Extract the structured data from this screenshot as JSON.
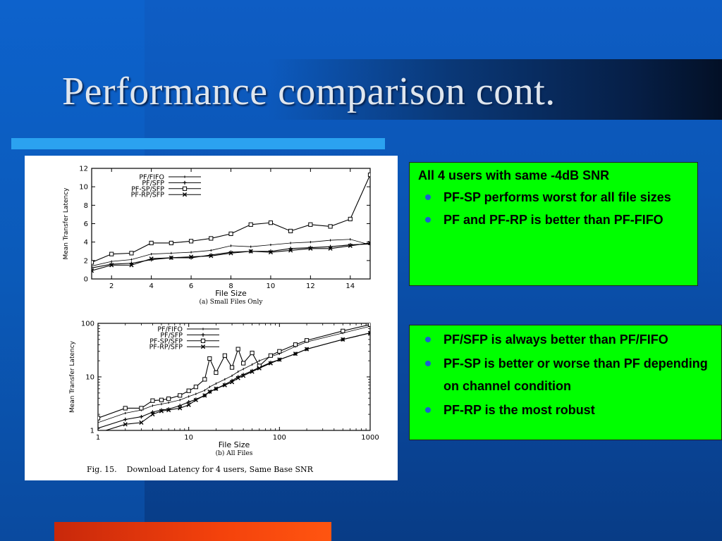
{
  "slide": {
    "title": "Performance comparison cont."
  },
  "box1": {
    "heading": "All 4 users with same -4dB SNR",
    "bullets": [
      "PF-SP performs worst for all file sizes",
      "PF and PF-RP is better than PF-FIFO"
    ]
  },
  "box2": {
    "bullets": [
      "PF/SFP is always better than PF/FIFO",
      "PF-SP is better or worse than PF depending on channel condition",
      "PF-RP is the most robust"
    ]
  },
  "figure": {
    "caption": "Fig. 15.    Download Latency for 4 users, Same Base SNR"
  },
  "chart_data": [
    {
      "type": "line",
      "subtitle": "(a) Small Files Only",
      "xlabel": "File Size",
      "ylabel": "Mean Transfer Latency",
      "xlim": [
        1,
        15
      ],
      "ylim": [
        0,
        12
      ],
      "xticks": [
        2,
        4,
        6,
        8,
        10,
        12,
        14
      ],
      "yticks": [
        0,
        2,
        4,
        6,
        8,
        10,
        12
      ],
      "x": [
        1,
        2,
        3,
        4,
        5,
        6,
        7,
        8,
        9,
        10,
        11,
        12,
        13,
        14,
        15
      ],
      "legend_position": "top-left",
      "series": [
        {
          "name": "PF/FIFO",
          "values": [
            1.4,
            1.9,
            2.1,
            2.7,
            2.8,
            2.9,
            3.1,
            3.6,
            3.5,
            3.7,
            3.9,
            4.0,
            4.2,
            4.3,
            3.7
          ]
        },
        {
          "name": "PF/SFP",
          "values": [
            1.2,
            1.6,
            1.7,
            2.1,
            2.3,
            2.3,
            2.6,
            2.9,
            3.0,
            3.0,
            3.3,
            3.4,
            3.5,
            3.7,
            3.8
          ]
        },
        {
          "name": "PF-SP/SFP",
          "values": [
            1.8,
            2.7,
            2.8,
            3.9,
            3.9,
            4.1,
            4.4,
            4.9,
            5.9,
            6.1,
            5.2,
            5.9,
            5.7,
            6.5,
            11.3
          ]
        },
        {
          "name": "PF-RP/SFP",
          "values": [
            0.9,
            1.5,
            1.5,
            2.2,
            2.3,
            2.4,
            2.5,
            2.8,
            3.0,
            2.9,
            3.1,
            3.3,
            3.3,
            3.6,
            3.9
          ]
        }
      ]
    },
    {
      "type": "line",
      "subtitle": "(b) All Files",
      "xlabel": "File Size",
      "ylabel": "Mean Transfer Latency",
      "xscale": "log",
      "yscale": "log",
      "xlim": [
        1,
        1000
      ],
      "ylim": [
        1,
        100
      ],
      "xticks": [
        1,
        10,
        100,
        1000
      ],
      "yticks": [
        1,
        10,
        100
      ],
      "x": [
        1,
        2,
        3,
        4,
        5,
        6,
        8,
        10,
        12,
        15,
        17,
        20,
        25,
        30,
        35,
        40,
        50,
        60,
        80,
        100,
        150,
        200,
        500,
        1000
      ],
      "legend_position": "top-left",
      "series": [
        {
          "name": "PF/FIFO",
          "values": [
            1.4,
            2.1,
            2.4,
            2.9,
            3.1,
            3.3,
            3.7,
            4.3,
            4.8,
            5.6,
            6.5,
            7.5,
            9.0,
            10.5,
            12.5,
            14.0,
            17.0,
            20.0,
            24.0,
            27.0,
            37.0,
            45.0,
            66.0,
            88.0
          ]
        },
        {
          "name": "PF/SFP",
          "values": [
            1.1,
            1.6,
            1.8,
            2.2,
            2.4,
            2.5,
            2.9,
            3.4,
            3.8,
            4.5,
            5.2,
            6.0,
            7.2,
            8.5,
            10.0,
            11.0,
            13.0,
            15.0,
            18.5,
            21.0,
            27.0,
            33.0,
            50.0,
            66.0
          ]
        },
        {
          "name": "PF-SP/SFP",
          "values": [
            1.7,
            2.6,
            2.6,
            3.6,
            3.7,
            3.9,
            4.5,
            5.5,
            6.5,
            9.0,
            22.0,
            12.0,
            25.0,
            15.0,
            33.0,
            18.0,
            28.0,
            16.0,
            25.0,
            30.0,
            40.0,
            48.0,
            72.0,
            95.0
          ]
        },
        {
          "name": "PF-RP/SFP",
          "values": [
            0.9,
            1.3,
            1.4,
            2.0,
            2.3,
            2.4,
            2.6,
            3.0,
            3.7,
            4.5,
            5.3,
            6.0,
            7.0,
            8.0,
            9.5,
            10.5,
            12.5,
            14.5,
            18.0,
            21.0,
            27.0,
            33.0,
            50.0,
            66.0
          ]
        }
      ]
    }
  ]
}
